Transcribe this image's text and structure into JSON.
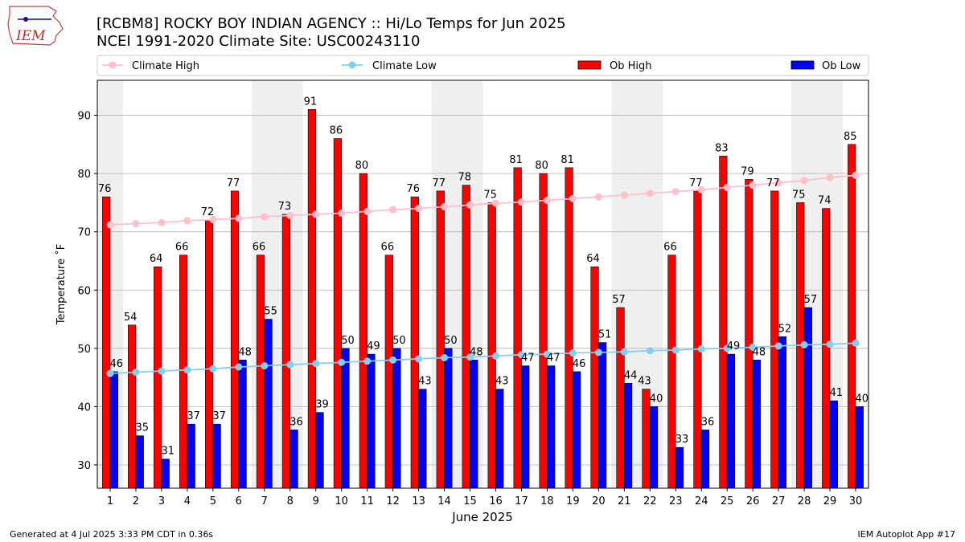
{
  "chart_data": {
    "type": "bar",
    "title": "[RCBM8] ROCKY BOY INDIAN AGENCY :: Hi/Lo Temps for Jun 2025",
    "subtitle": "NCEI 1991-2020 Climate Site: USC00243110",
    "xlabel": "June 2025",
    "ylabel": "Temperature ˚F",
    "ylim": [
      26,
      96
    ],
    "yticks": [
      30,
      40,
      50,
      60,
      70,
      80,
      90
    ],
    "grid": true,
    "legend_position": "top",
    "legend": [
      "Climate High",
      "Climate Low",
      "Ob High",
      "Ob Low"
    ],
    "categories": [
      "1",
      "2",
      "3",
      "4",
      "5",
      "6",
      "7",
      "8",
      "9",
      "10",
      "11",
      "12",
      "13",
      "14",
      "15",
      "16",
      "17",
      "18",
      "19",
      "20",
      "21",
      "22",
      "23",
      "24",
      "25",
      "26",
      "27",
      "28",
      "29",
      "30"
    ],
    "weekend_days": [
      1,
      7,
      8,
      14,
      15,
      21,
      22,
      28,
      29
    ],
    "series": [
      {
        "name": "Ob High",
        "kind": "bar",
        "color": "#ff0000",
        "values": [
          76,
          54,
          64,
          66,
          72,
          77,
          66,
          73,
          91,
          86,
          80,
          66,
          76,
          77,
          78,
          75,
          81,
          80,
          81,
          64,
          57,
          43,
          66,
          77,
          83,
          79,
          77,
          75,
          74,
          85
        ]
      },
      {
        "name": "Ob Low",
        "kind": "bar",
        "color": "#0000ff",
        "values": [
          46,
          35,
          31,
          37,
          37,
          48,
          55,
          36,
          39,
          50,
          49,
          50,
          43,
          50,
          48,
          43,
          47,
          47,
          46,
          51,
          44,
          40,
          33,
          36,
          49,
          48,
          52,
          57,
          41,
          40
        ]
      },
      {
        "name": "Climate High",
        "kind": "line",
        "color": "#ffc0cb",
        "values": [
          71.2,
          71.4,
          71.6,
          71.9,
          72.1,
          72.3,
          72.6,
          72.8,
          73.0,
          73.2,
          73.5,
          73.8,
          74.0,
          74.3,
          74.6,
          74.9,
          75.1,
          75.4,
          75.7,
          76.0,
          76.3,
          76.6,
          76.9,
          77.2,
          77.6,
          78.0,
          78.4,
          78.8,
          79.3,
          79.7
        ]
      },
      {
        "name": "Climate Low",
        "kind": "line",
        "color": "#87ceeb",
        "values": [
          45.7,
          45.9,
          46.1,
          46.3,
          46.5,
          46.8,
          47.0,
          47.2,
          47.4,
          47.6,
          47.8,
          48.0,
          48.2,
          48.4,
          48.5,
          48.7,
          48.9,
          49.0,
          49.2,
          49.3,
          49.4,
          49.6,
          49.7,
          49.9,
          50.0,
          50.2,
          50.4,
          50.6,
          50.7,
          50.9
        ]
      }
    ]
  },
  "footer": {
    "generated": "Generated at 4 Jul 2025 3:33 PM CDT in 0.36s",
    "app": "IEM Autoplot App #17"
  },
  "logo": {
    "text": "IEM"
  },
  "colors": {
    "weekend_band": "#efefef",
    "grid": "#b0b0b0"
  }
}
